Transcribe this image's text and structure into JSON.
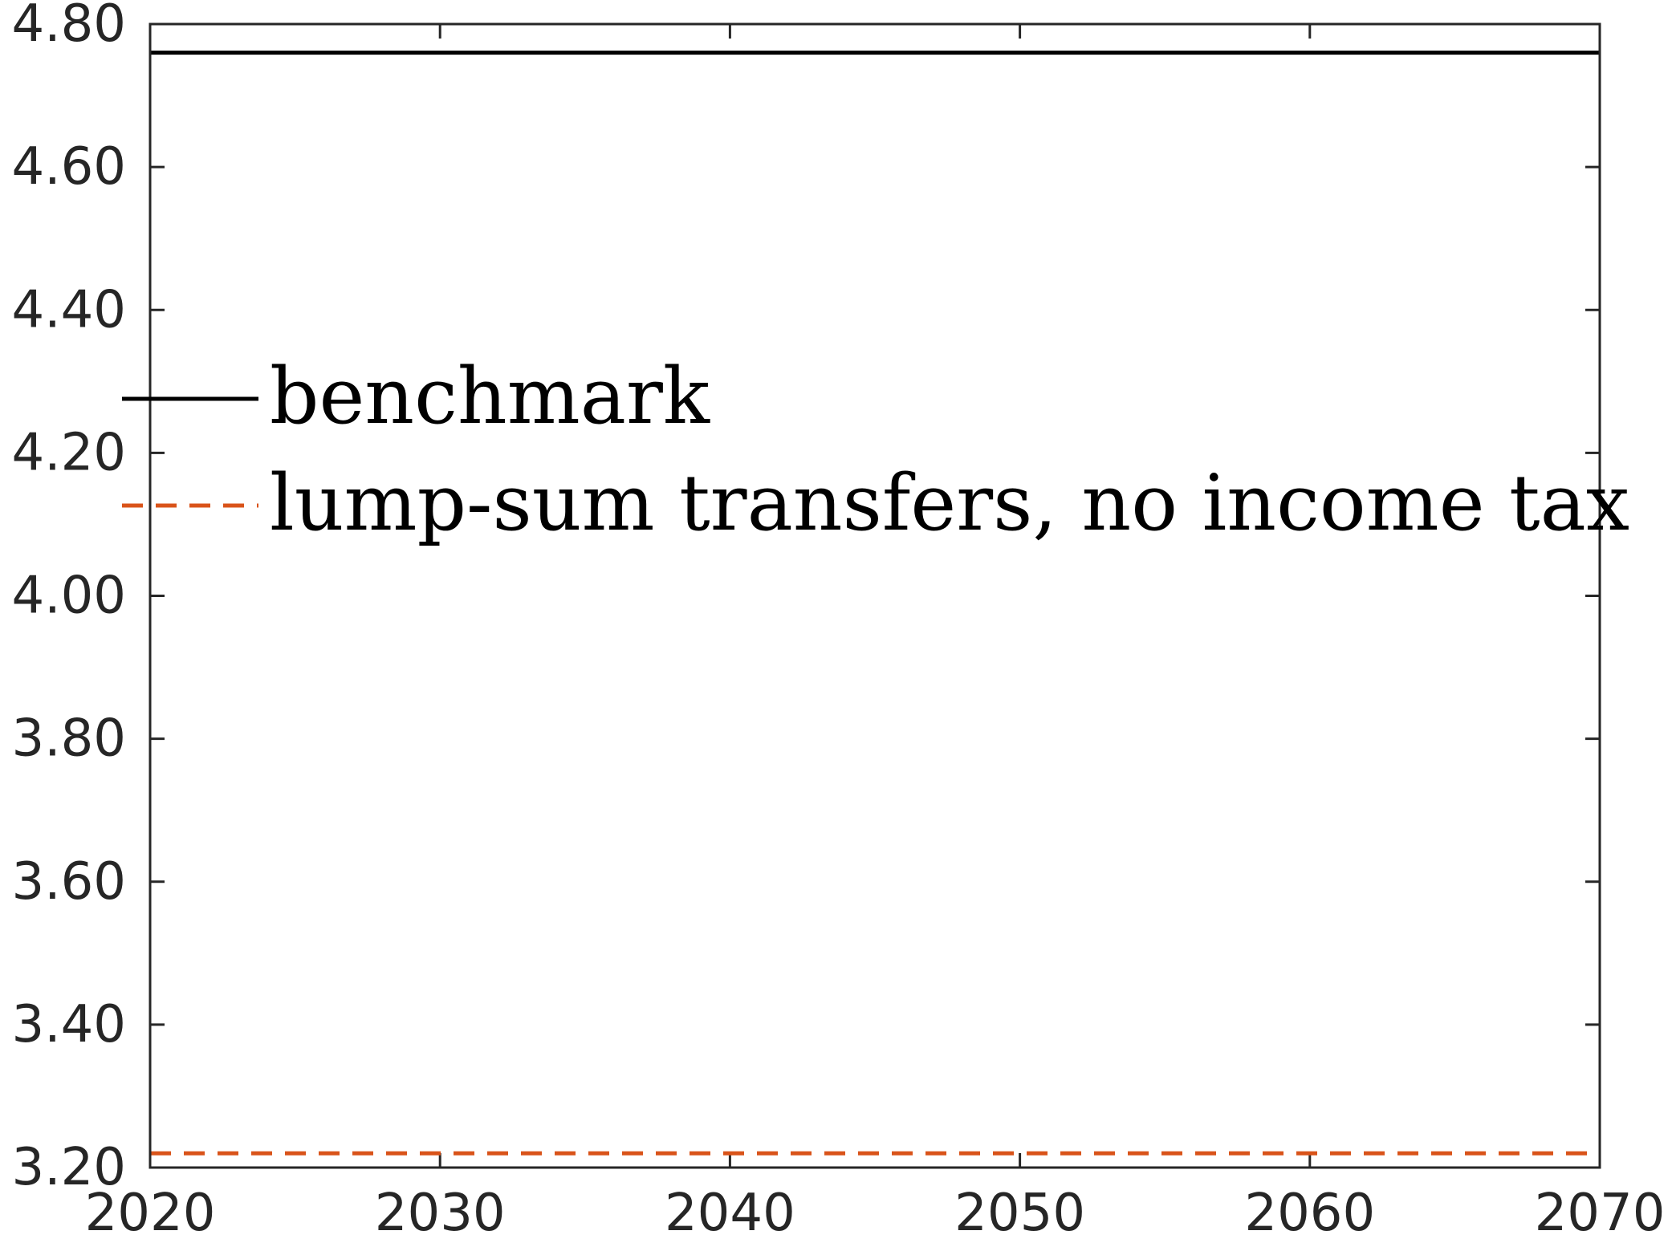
{
  "chart_data": {
    "type": "line",
    "x": [
      2020,
      2070
    ],
    "series": [
      {
        "name": "benchmark",
        "values": [
          4.76,
          4.76
        ],
        "color": "#000000",
        "dash": "solid"
      },
      {
        "name": "lump-sum transfers, no income tax",
        "values": [
          3.22,
          3.22
        ],
        "color": "#D95319",
        "dash": "dashed"
      }
    ],
    "xlim": [
      2020,
      2070
    ],
    "ylim": [
      3.2,
      4.8
    ],
    "xticks": [
      "2020",
      "2030",
      "2040",
      "2050",
      "2060",
      "2070"
    ],
    "yticks": [
      "3.20",
      "3.40",
      "3.60",
      "3.80",
      "4.00",
      "4.20",
      "4.40",
      "4.60",
      "4.80"
    ],
    "title": "",
    "xlabel": "",
    "ylabel": "",
    "grid": false,
    "legend": "center-left"
  }
}
